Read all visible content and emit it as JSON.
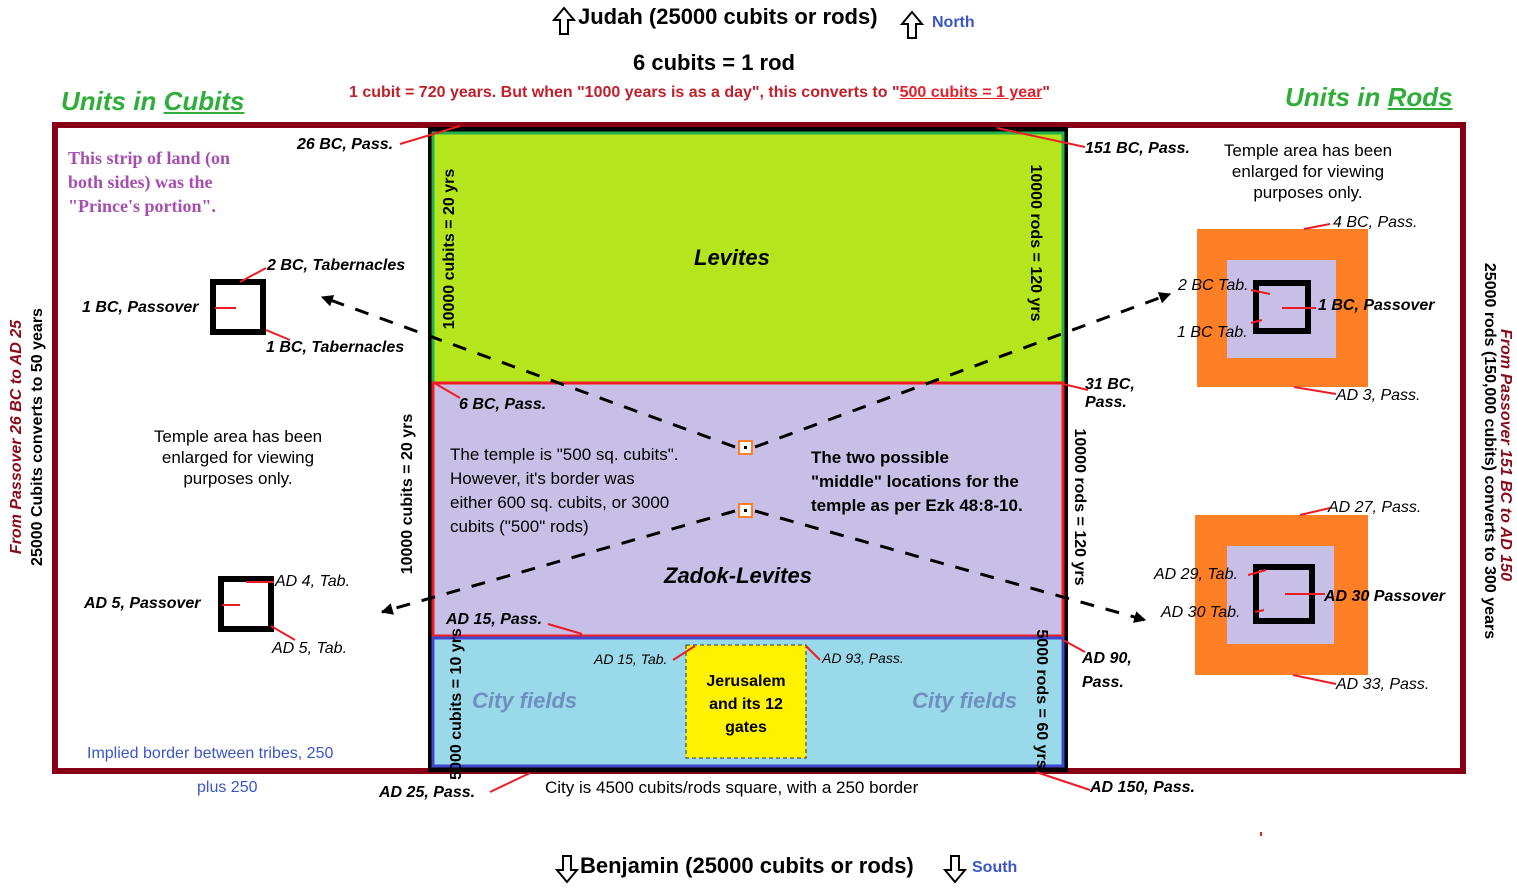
{
  "header": {
    "north_title": "Judah (25000 cubits or rods)",
    "north_label": "North",
    "rod_equation": "6 cubits = 1 rod",
    "cubit_note_main": "1 cubit = 720 years. But when \"1000 years is as a day\", this converts to \"",
    "cubit_note_link": "500 cubits = 1 year",
    "cubit_note_end": "\"",
    "units_cubits_prefix": "Units in ",
    "units_cubits_word": "Cubits",
    "units_rods_prefix": "Units in ",
    "units_rods_word": "Rods"
  },
  "footer": {
    "south_title": "Benjamin (25000 cubits or rods)",
    "south_label": "South",
    "city_note": "City is 4500 cubits/rods square, with a 250 border",
    "implied_border": "Implied border between tribes, 250",
    "plus_250": "plus 250"
  },
  "side_labels": {
    "left_period": "From Passover 26 BC to AD 25",
    "left_conversion": "25000 Cubits converts to 50 years",
    "right_period": "From Passover 151 BC to AD 150",
    "right_conversion": "25000 rods (150,000 cubits) converts to 300 years"
  },
  "left_panel": {
    "prince_note": [
      "This strip of land (on",
      "both sides) was the",
      "\"Prince's portion\"."
    ],
    "enlarged_note": [
      "Temple area has been",
      "enlarged for viewing",
      "purposes only."
    ],
    "upper_temple": {
      "left": "1 BC, Passover",
      "top": "2 BC, Tabernacles",
      "bottom": "1 BC, Tabernacles"
    },
    "lower_temple": {
      "left": "AD 5, Passover",
      "top": "AD 4, Tab.",
      "bottom": "AD 5, Tab."
    }
  },
  "right_panel": {
    "enlarged_note": [
      "Temple area has been",
      "enlarged for viewing",
      "purposes only."
    ],
    "upper_temple": {
      "top": "4 BC, Pass.",
      "left_top": "2 BC Tab.",
      "left_bottom": "1 BC Tab.",
      "right": "1 BC, Passover",
      "bottom": "AD 3, Pass."
    },
    "lower_temple": {
      "top": "AD 27, Pass.",
      "left_top": "AD 29, Tab.",
      "left_bottom": "AD 30 Tab.",
      "right": "AD 30 Passover",
      "bottom": "AD 33, Pass."
    }
  },
  "center": {
    "levites": "Levites",
    "zadok": "Zadok-Levites",
    "city_fields_left": "City fields",
    "city_fields_right": "City fields",
    "jerusalem": [
      "Jerusalem",
      "and its 12",
      "gates"
    ],
    "temple_note": [
      "The temple is \"500 sq. cubits\".",
      "However, it's border was",
      "either 600 sq. cubits, or 3000",
      "cubits (\"500\" rods)"
    ],
    "middle_note": [
      "The two possible",
      "\"middle\" locations for the",
      "temple as per Ezk 48:8-10."
    ],
    "dim_levites_left": "10000 cubits = 20 yrs",
    "dim_levites_right": "10000 rods = 120 yrs",
    "dim_zadok_left": "10000 cubits = 20 yrs",
    "dim_zadok_right": "10000 rods = 120 yrs",
    "dim_city_left": "5000 cubits = 10 yrs",
    "dim_city_right": "5000 rods = 60 yrs"
  },
  "timeline_labels": {
    "bc26": "26 BC, Pass.",
    "bc151": "151 BC, Pass.",
    "bc6": "6 BC, Pass.",
    "bc31": "31 BC, Pass.",
    "ad15": "AD 15, Pass.",
    "ad15tab": "AD 15, Tab.",
    "ad93": "AD 93, Pass.",
    "ad90": "AD 90, Pass.",
    "ad25": "AD 25, Pass.",
    "ad150": "AD 150, Pass."
  },
  "colors": {
    "levites": "#b5e61d",
    "zadok": "#c8bfe7",
    "city": "#99d9ea",
    "jerusalem": "#fff200",
    "outer_border": "#880015",
    "orange": "#ff7f27",
    "red": "#ed1c24"
  }
}
